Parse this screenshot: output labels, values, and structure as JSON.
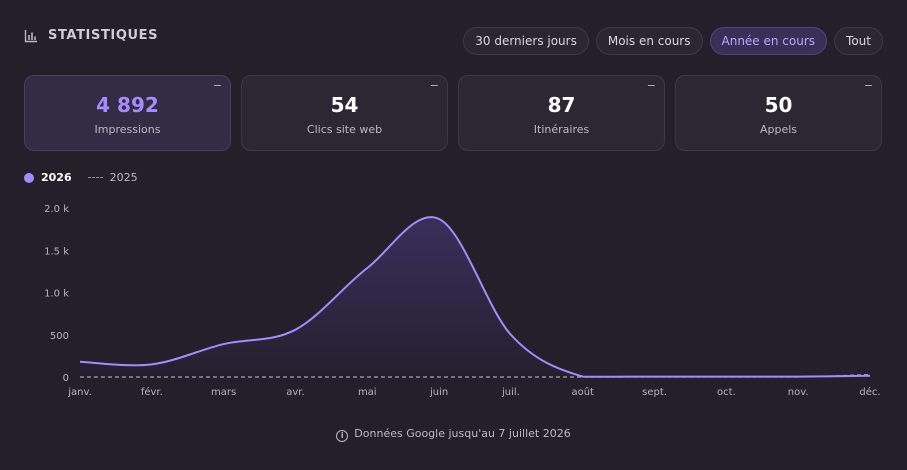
{
  "header": {
    "title": "STATISTIQUES",
    "icon": "bar-chart-icon"
  },
  "filters": [
    {
      "label": "30 derniers jours",
      "active": false
    },
    {
      "label": "Mois en cours",
      "active": false
    },
    {
      "label": "Année en cours",
      "active": true
    },
    {
      "label": "Tout",
      "active": false
    }
  ],
  "cards": [
    {
      "value": "4 892",
      "label": "Impressions",
      "active": true,
      "collapse": "−"
    },
    {
      "value": "54",
      "label": "Clics site web",
      "active": false,
      "collapse": "−"
    },
    {
      "value": "87",
      "label": "Itinéraires",
      "active": false,
      "collapse": "−"
    },
    {
      "value": "50",
      "label": "Appels",
      "active": false,
      "collapse": "−"
    }
  ],
  "colors": {
    "accent": "#a78bfa",
    "background": "#231f2b",
    "card": "#2c2833"
  },
  "chart_data": {
    "type": "area",
    "categories": [
      "janv.",
      "févr.",
      "mars",
      "avr.",
      "mai",
      "juin",
      "juil.",
      "août",
      "sept.",
      "oct.",
      "nov.",
      "déc."
    ],
    "yticks": [
      "0",
      "500",
      "1.0 k",
      "1.5 k",
      "2.0 k"
    ],
    "ylim": [
      0,
      2000
    ],
    "series": [
      {
        "name": "2026",
        "values": [
          180,
          150,
          390,
          560,
          1290,
          1870,
          500,
          5,
          5,
          5,
          5,
          15
        ],
        "style": "solid-area"
      },
      {
        "name": "2025",
        "values": [
          0,
          0,
          0,
          0,
          0,
          0,
          0,
          0,
          0,
          0,
          0,
          30
        ],
        "style": "dashed"
      }
    ],
    "legend_position": "top-left",
    "grid": false
  },
  "footer": {
    "note": "Données Google jusqu'au 7 juillet 2026",
    "icon": "info-icon"
  }
}
